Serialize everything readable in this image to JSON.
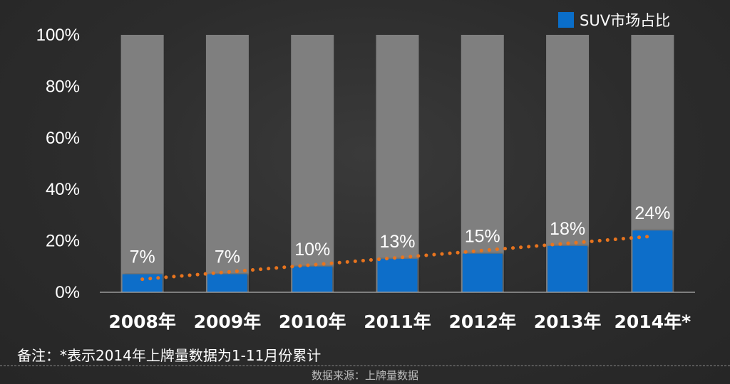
{
  "chart_data": {
    "type": "bar",
    "categories": [
      "2008年",
      "2009年",
      "2010年",
      "2011年",
      "2012年",
      "2013年",
      "2014年*"
    ],
    "series": [
      {
        "name": "SUV市场占比",
        "values": [
          7,
          7,
          10,
          13,
          15,
          18,
          24
        ],
        "data_labels": [
          "7%",
          "7%",
          "10%",
          "13%",
          "15%",
          "18%",
          "24%"
        ],
        "color": "#0a6ec9"
      }
    ],
    "background_bar_value": 100,
    "background_bar_color": "#7f7f7f",
    "trendline": {
      "style": "dotted",
      "color": "#e8741e"
    },
    "ylim": [
      0,
      100
    ],
    "yticks": [
      0,
      20,
      40,
      60,
      80,
      100
    ],
    "ytick_labels": [
      "0%",
      "20%",
      "40%",
      "60%",
      "80%",
      "100%"
    ],
    "grid": false,
    "legend_position": "top-right",
    "title": "",
    "xlabel": "",
    "ylabel": ""
  },
  "note": "备注：*表示2014年上牌量数据为1-11月份累计",
  "source": "数据来源：上牌量数据"
}
